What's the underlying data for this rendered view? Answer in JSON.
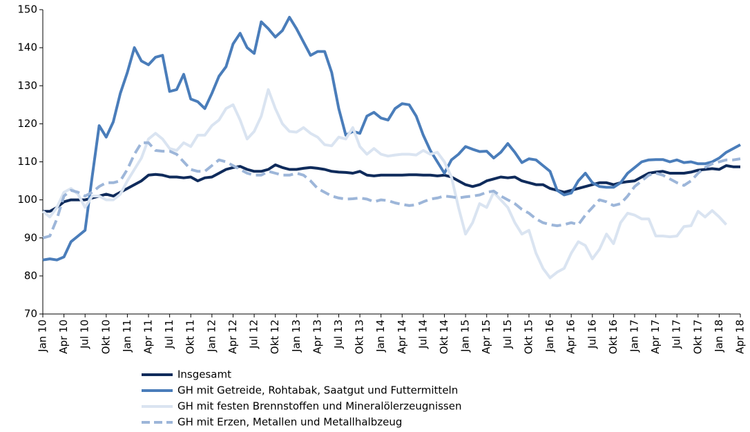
{
  "chart_data": {
    "type": "line",
    "categories": [
      "Jan 10",
      null,
      null,
      "Apr 10",
      null,
      null,
      "Jul 10",
      null,
      null,
      "Okt 10",
      null,
      null,
      "Jan 11",
      null,
      null,
      "Apr 11",
      null,
      null,
      "Jul 11",
      null,
      null,
      "Okt 11",
      null,
      null,
      "Jan 12",
      null,
      null,
      "Apr 12",
      null,
      null,
      "Jul 12",
      null,
      null,
      "Okt 12",
      null,
      null,
      "Jan 13",
      null,
      null,
      "Apr 13",
      null,
      null,
      "Jul 13",
      null,
      null,
      "Okt 13",
      null,
      null,
      "Jan 14",
      null,
      null,
      "Apr 14",
      null,
      null,
      "Jul 14",
      null,
      null,
      "Okt 14",
      null,
      null,
      "Jan 15",
      null,
      null,
      "Apr 15",
      null,
      null,
      "Jul 15",
      null,
      null,
      "Okt 15",
      null,
      null,
      "Jan 16",
      null,
      null,
      "Apr 16",
      null,
      null,
      "Jul 16",
      null,
      null,
      "Okt 16",
      null,
      null,
      "Jan 17",
      null,
      null,
      "Apr 17",
      null,
      null,
      "Jul 17",
      null,
      null,
      "Okt 17",
      null,
      null,
      "Jan 18",
      null,
      null,
      "Apr 18"
    ],
    "ylim": [
      70,
      150
    ],
    "yticks": [
      70,
      80,
      90,
      100,
      110,
      120,
      130,
      140,
      150
    ],
    "series": [
      {
        "name": "Insgesamt",
        "color": "#0f2b5b",
        "dashed": false,
        "values": [
          97,
          97,
          98,
          99.5,
          100,
          100,
          100,
          100.5,
          101,
          101.5,
          101,
          102,
          103,
          104,
          105,
          106.5,
          106.7,
          106.5,
          106,
          106,
          105.8,
          106,
          105,
          105.8,
          106,
          107,
          108,
          108.5,
          108.8,
          108,
          107.5,
          107.5,
          108,
          109.2,
          108.5,
          108,
          108,
          108.3,
          108.5,
          108.3,
          108,
          107.5,
          107.3,
          107.2,
          107,
          107.5,
          106.5,
          106.3,
          106.5,
          106.5,
          106.5,
          106.5,
          106.6,
          106.6,
          106.5,
          106.5,
          106.3,
          106.5,
          106,
          105,
          104,
          103.5,
          104,
          105,
          105.5,
          106,
          105.8,
          106,
          105,
          104.5,
          104,
          104,
          103,
          102.5,
          102,
          102.5,
          103,
          103.5,
          104,
          104.5,
          104.5,
          104,
          104.5,
          104.8,
          105,
          106,
          107,
          107.3,
          107.5,
          107,
          107,
          107,
          107.3,
          107.8,
          108,
          108.2,
          108,
          109,
          108.7,
          108.7
        ]
      },
      {
        "name": "GH mit Getreide, Rohtabak, Saatgut und Futtermitteln",
        "color": "#4a7dba",
        "dashed": false,
        "values": [
          84.2,
          84.5,
          84.2,
          85,
          89,
          90.5,
          92,
          106,
          119.5,
          116.5,
          120.5,
          128,
          133.5,
          140,
          136.5,
          135.5,
          137.5,
          138,
          128.5,
          129,
          133,
          126.5,
          125.8,
          124,
          128,
          132.5,
          135,
          141,
          143.8,
          140,
          138.5,
          146.8,
          145,
          142.8,
          144.5,
          148,
          145,
          141.5,
          138,
          139,
          139,
          133.5,
          124,
          117,
          118,
          117.5,
          122,
          123,
          121.5,
          121,
          124,
          125.3,
          125,
          122,
          117,
          113,
          110,
          107,
          110.5,
          112,
          114,
          113.3,
          112.7,
          112.8,
          111,
          112.5,
          114.8,
          112.5,
          109.8,
          110.8,
          110.5,
          109,
          107.5,
          102.5,
          101.3,
          101.8,
          105,
          107,
          104.5,
          103.5,
          103.3,
          103.3,
          104.5,
          107,
          108.5,
          110,
          110.5,
          110.6,
          110.6,
          110,
          110.5,
          109.8,
          110,
          109.5,
          109.5,
          110,
          111,
          112.5,
          113.5,
          114.5
        ]
      },
      {
        "name": "GH mit festen Brennstoffen und Mineralölerzeugnissen",
        "color": "#dae4f1",
        "dashed": false,
        "values": [
          97,
          95.5,
          98,
          102,
          103,
          101.5,
          98,
          101,
          101,
          100,
          100,
          101.5,
          105,
          108,
          111,
          116,
          117.5,
          116,
          113.5,
          113,
          115,
          114,
          117,
          117,
          119.5,
          121,
          124,
          125,
          121,
          116,
          118,
          122,
          129,
          124,
          120,
          118,
          117.8,
          119,
          117.5,
          116.5,
          114.5,
          114.2,
          116.5,
          116,
          119,
          114,
          112,
          113.5,
          112,
          111.5,
          111.8,
          112,
          112,
          111.8,
          113,
          112,
          112.5,
          110,
          106,
          98,
          91,
          94,
          99,
          98,
          102,
          100,
          98,
          94,
          91,
          92,
          86,
          82,
          79.5,
          81,
          82,
          86,
          89,
          88,
          84.5,
          87,
          91,
          88.5,
          94,
          96.5,
          96,
          95,
          95,
          90.5,
          90.5,
          90.3,
          90.5,
          93,
          93.2,
          97,
          95.5,
          97.2,
          95.5,
          93.5,
          null,
          null
        ]
      },
      {
        "name": "GH mit Erzen, Metallen und Metallhalbzeug",
        "color": "#9db6d9",
        "dashed": true,
        "values": [
          90,
          90.5,
          95,
          101,
          102.5,
          102,
          101,
          102,
          103.5,
          104.5,
          104.5,
          105,
          108,
          112,
          115,
          115,
          113,
          112.8,
          112.8,
          112,
          110,
          108,
          107.5,
          107.5,
          109,
          110.5,
          110,
          109,
          108,
          107,
          106.5,
          106.5,
          107.5,
          107,
          106.5,
          106.5,
          107,
          106.5,
          105,
          103,
          102,
          101,
          100.5,
          100.2,
          100.3,
          100.5,
          100.2,
          99.5,
          100,
          99.8,
          99.2,
          98.8,
          98.5,
          98.7,
          99.5,
          100.2,
          100.5,
          101,
          100.8,
          100.5,
          100.8,
          101,
          101.3,
          102,
          102.3,
          101,
          100,
          99,
          97.5,
          96.5,
          95,
          94,
          93.5,
          93.2,
          93.5,
          94,
          93.5,
          96,
          98,
          100,
          99.5,
          98.5,
          99,
          101,
          103.5,
          105,
          106.5,
          107,
          106.5,
          105.5,
          104.5,
          103.8,
          105,
          107,
          108.5,
          109.5,
          110,
          110.5,
          110.5,
          110.8
        ]
      }
    ]
  }
}
